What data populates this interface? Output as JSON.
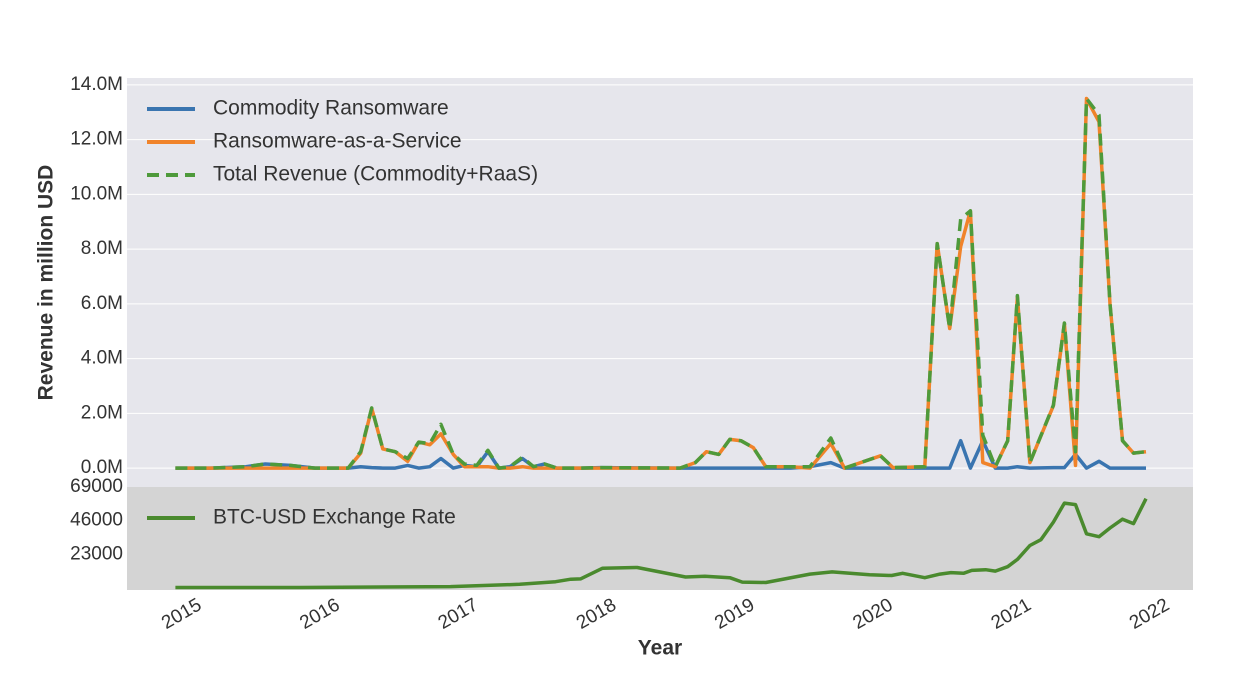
{
  "chart_data": [
    {
      "type": "line",
      "ylabel": "Revenue in million USD",
      "xlim": [
        2014.47,
        2022.18
      ],
      "ylim": [
        -0.69,
        14.25
      ],
      "yticks": [
        {
          "value": 0,
          "label": "0.0M"
        },
        {
          "value": 2,
          "label": "2.0M"
        },
        {
          "value": 4,
          "label": "4.0M"
        },
        {
          "value": 6,
          "label": "6.0M"
        },
        {
          "value": 8,
          "label": "8.0M"
        },
        {
          "value": 10,
          "label": "10.0M"
        },
        {
          "value": 12,
          "label": "12.0M"
        },
        {
          "value": 14,
          "label": "14.0M"
        }
      ],
      "grid": true,
      "legend": "upper-left",
      "background": "#e6e6ec",
      "x": [
        2014.82,
        2015.07,
        2015.33,
        2015.47,
        2015.65,
        2015.83,
        2016.07,
        2016.16,
        2016.24,
        2016.32,
        2016.41,
        2016.5,
        2016.58,
        2016.66,
        2016.74,
        2016.83,
        2016.91,
        2017.0,
        2017.08,
        2017.16,
        2017.24,
        2017.33,
        2017.41,
        2017.49,
        2017.58,
        2017.75,
        2017.89,
        2018.47,
        2018.58,
        2018.66,
        2018.75,
        2018.83,
        2018.91,
        2019.0,
        2019.09,
        2019.27,
        2019.41,
        2019.56,
        2019.66,
        2019.92,
        2020.01,
        2020.24,
        2020.33,
        2020.42,
        2020.5,
        2020.57,
        2020.66,
        2020.75,
        2020.84,
        2020.91,
        2021.0,
        2021.17,
        2021.25,
        2021.33,
        2021.41,
        2021.5,
        2021.58,
        2021.67,
        2021.75,
        2021.84
      ],
      "series": [
        {
          "name": "Commodity Ransomware",
          "color": "#3a75b0",
          "dash": false,
          "values": [
            0,
            0,
            0.05,
            0.15,
            0.1,
            0,
            0,
            0.05,
            0.02,
            0,
            0,
            0.1,
            0,
            0.05,
            0.35,
            0,
            0.1,
            0.05,
            0.6,
            0,
            0.05,
            0.35,
            0.05,
            0.15,
            0,
            0,
            0.02,
            0,
            0,
            0,
            0,
            0,
            0,
            0,
            0,
            0,
            0.05,
            0.2,
            0,
            0,
            0,
            0,
            0,
            0,
            1.0,
            0,
            1.0,
            0,
            0,
            0.05,
            0,
            0.02,
            0.02,
            0.5,
            0,
            0.25,
            0,
            0,
            0,
            0
          ]
        },
        {
          "name": "Ransomware-as-a-Service",
          "color": "#f0832a",
          "dash": false,
          "values": [
            0,
            0,
            0,
            0,
            0,
            0,
            0,
            0.55,
            2.18,
            0.7,
            0.6,
            0.25,
            0.95,
            0.85,
            1.25,
            0.5,
            0.05,
            0.05,
            0.05,
            0,
            0,
            0.05,
            0,
            0,
            0,
            0,
            0,
            0,
            0.2,
            0.6,
            0.5,
            1.05,
            1.0,
            0.75,
            0.05,
            0.05,
            0,
            0.9,
            0,
            0.45,
            0.02,
            0.05,
            8.2,
            5.1,
            8.1,
            9.4,
            0.2,
            0.05,
            1.0,
            6.25,
            0.2,
            2.28,
            5.28,
            0.1,
            13.5,
            12.65,
            6.0,
            1.0,
            0.55,
            0.6
          ]
        },
        {
          "name": "Total Revenue (Commodity+RaaS)",
          "color": "#4e9a3b",
          "dash": true,
          "values": [
            0,
            0,
            0.05,
            0.15,
            0.1,
            0,
            0,
            0.6,
            2.2,
            0.7,
            0.6,
            0.35,
            0.95,
            0.9,
            1.6,
            0.5,
            0.15,
            0.1,
            0.65,
            0,
            0.05,
            0.4,
            0.05,
            0.15,
            0,
            0,
            0.02,
            0,
            0.2,
            0.6,
            0.5,
            1.05,
            1.0,
            0.75,
            0.05,
            0.05,
            0.05,
            1.1,
            0,
            0.45,
            0.02,
            0.05,
            8.2,
            5.1,
            9.1,
            9.4,
            1.2,
            0.05,
            1.0,
            6.3,
            0.2,
            2.3,
            5.3,
            0.6,
            13.5,
            12.9,
            6.0,
            1.0,
            0.55,
            0.6
          ]
        }
      ]
    },
    {
      "type": "line",
      "xlabel": "Year",
      "xlim": [
        2014.47,
        2022.18
      ],
      "ylim": [
        -1400,
        69000
      ],
      "xticks": [
        2015,
        2016,
        2017,
        2018,
        2019,
        2020,
        2021,
        2022
      ],
      "yticks": [
        23000,
        46000,
        69000
      ],
      "grid": false,
      "legend": "upper-left",
      "background": "#d4d4d4",
      "x": [
        2014.82,
        2015.72,
        2016.81,
        2017.31,
        2017.57,
        2017.68,
        2017.75,
        2017.91,
        2018.16,
        2018.51,
        2018.65,
        2018.83,
        2018.92,
        2019.09,
        2019.41,
        2019.57,
        2019.84,
        2020.0,
        2020.08,
        2020.24,
        2020.35,
        2020.43,
        2020.52,
        2020.58,
        2020.68,
        2020.75,
        2020.84,
        2020.91,
        2021.0,
        2021.08,
        2021.17,
        2021.25,
        2021.33,
        2021.41,
        2021.5,
        2021.58,
        2021.67,
        2021.75,
        2021.84
      ],
      "series": [
        {
          "name": "BTC-USD Exchange Rate",
          "color": "#4a8a2e",
          "dash": false,
          "values": [
            300,
            300,
            900,
            2500,
            4300,
            6000,
            6200,
            13500,
            14000,
            7500,
            8000,
            7000,
            4000,
            3700,
            9500,
            11000,
            9000,
            8500,
            10000,
            7000,
            9500,
            10500,
            10000,
            12000,
            12500,
            11500,
            14500,
            19500,
            29000,
            33000,
            45000,
            58000,
            57000,
            37000,
            35000,
            41000,
            47000,
            44000,
            61000
          ]
        }
      ]
    }
  ]
}
